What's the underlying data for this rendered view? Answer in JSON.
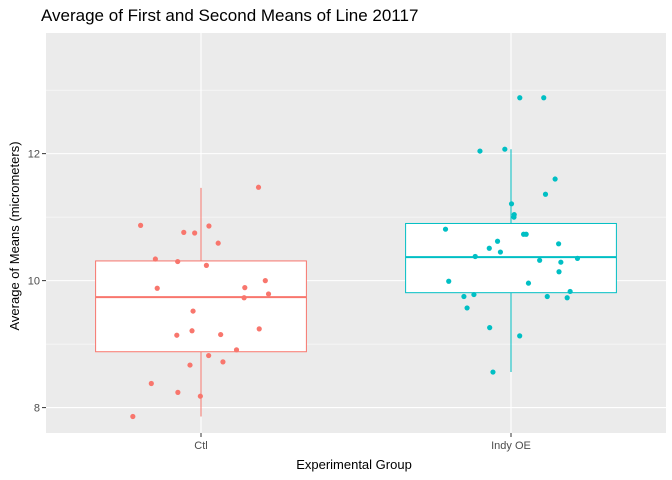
{
  "chart_data": {
    "type": "box",
    "title": "Average of First and Second Means of Line 20117",
    "xlabel": "Experimental Group",
    "ylabel": "Average of Means (micrometers)",
    "categories": [
      "Ctl",
      "Indy OE"
    ],
    "ylim": [
      7.6,
      13.9
    ],
    "yticks": [
      8,
      10,
      12
    ],
    "grid": true,
    "legend": "none",
    "colors": {
      "Ctl": "#F8766D",
      "Indy OE": "#00BFC4"
    },
    "boxes": [
      {
        "group": "Ctl",
        "q1": 8.88,
        "median": 9.74,
        "q3": 10.31,
        "whisker_low": 7.86,
        "whisker_high": 11.46
      },
      {
        "group": "Indy OE",
        "q1": 9.81,
        "median": 10.37,
        "q3": 10.9,
        "whisker_low": 8.56,
        "whisker_high": 12.07
      }
    ],
    "points": [
      {
        "group": "Ctl",
        "values": [
          11.47,
          10.87,
          10.86,
          10.76,
          10.75,
          10.59,
          10.34,
          10.3,
          10.24,
          10.0,
          9.89,
          9.88,
          9.79,
          9.73,
          9.52,
          9.24,
          9.21,
          9.15,
          9.14,
          8.91,
          8.82,
          8.72,
          8.67,
          8.38,
          8.24,
          8.18,
          7.86
        ]
      },
      {
        "group": "Indy OE",
        "values": [
          12.88,
          12.88,
          12.07,
          12.04,
          11.6,
          11.36,
          11.21,
          11.04,
          11.0,
          10.81,
          10.73,
          10.73,
          10.62,
          10.58,
          10.51,
          10.45,
          10.38,
          10.35,
          10.32,
          10.29,
          10.14,
          9.99,
          9.96,
          9.83,
          9.78,
          9.75,
          9.75,
          9.73,
          9.57,
          9.26,
          9.13,
          8.56
        ]
      }
    ]
  }
}
